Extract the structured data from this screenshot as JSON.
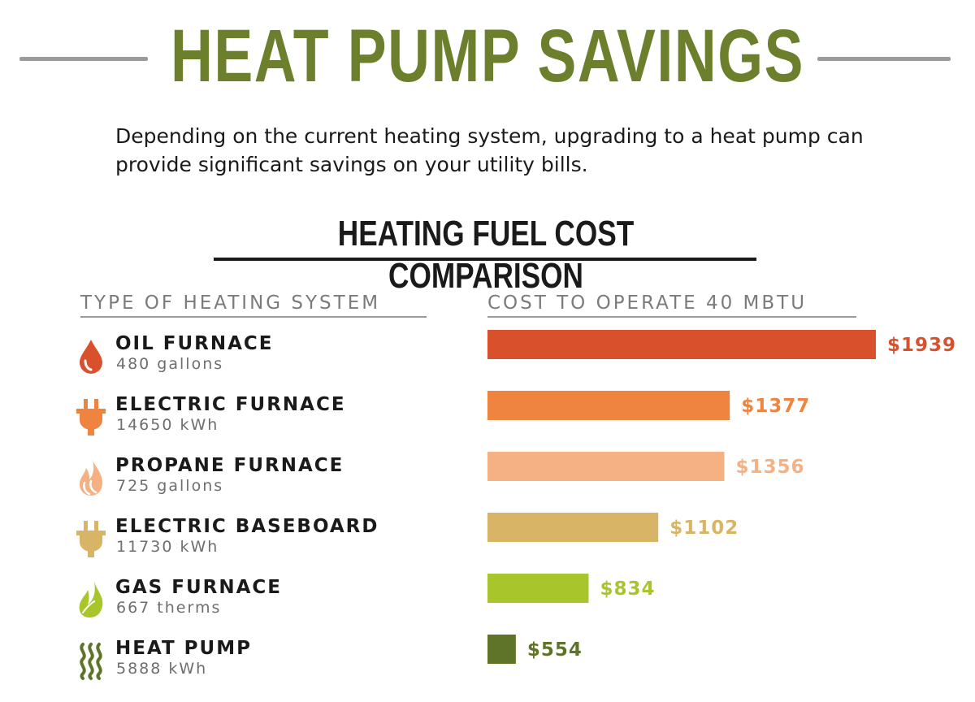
{
  "title": "HEAT PUMP SAVINGS",
  "intro": "Depending on the current heating system, upgrading to a heat pump can provide significant savings on your utility bills.",
  "chart_title": "HEATING FUEL COST COMPARISON",
  "col_left_header": "TYPE OF HEATING SYSTEM",
  "col_right_header": "COST TO OPERATE 40 MBTU",
  "colors": {
    "title": "#6b7f2c",
    "oil": "#d9512c",
    "electric_furnace": "#ef8340",
    "propane": "#f5b183",
    "baseboard": "#d8b467",
    "gas": "#a8c52c",
    "heat_pump": "#5f7428"
  },
  "systems": [
    {
      "name": "OIL FURNACE",
      "amount": "480 gallons",
      "icon": "oil-drop-icon",
      "color": "#d9512c",
      "label": "$1939"
    },
    {
      "name": "ELECTRIC FURNACE",
      "amount": "14650 kWh",
      "icon": "electric-plug-icon",
      "color": "#ef8340",
      "label": "$1377"
    },
    {
      "name": "PROPANE FURNACE",
      "amount": "725 gallons",
      "icon": "flame-icon",
      "color": "#f5b183",
      "label": "$1356"
    },
    {
      "name": "ELECTRIC BASEBOARD",
      "amount": "11730 kWh",
      "icon": "electric-plug-icon",
      "color": "#d8b467",
      "label": "$1102"
    },
    {
      "name": "GAS FURNACE",
      "amount": "667 therms",
      "icon": "leaf-flame-icon",
      "color": "#a8c52c",
      "label": "$834"
    },
    {
      "name": "HEAT PUMP",
      "amount": "5888 kWh",
      "icon": "heat-waves-icon",
      "color": "#5f7428",
      "label": "$554"
    }
  ],
  "chart_data": {
    "type": "bar",
    "orientation": "horizontal",
    "categories": [
      "OIL FURNACE",
      "ELECTRIC FURNACE",
      "PROPANE FURNACE",
      "ELECTRIC BASEBOARD",
      "GAS FURNACE",
      "HEAT PUMP"
    ],
    "values": [
      1939,
      1377,
      1356,
      1102,
      834,
      554
    ],
    "value_labels": [
      "$1939",
      "$1377",
      "$1356",
      "$1102",
      "$834",
      "$554"
    ],
    "colors": [
      "#d9512c",
      "#ef8340",
      "#f5b183",
      "#d8b467",
      "#a8c52c",
      "#5f7428"
    ],
    "title": "HEATING FUEL COST COMPARISON",
    "xlabel": "COST TO OPERATE 40 MBTU",
    "ylabel": "TYPE OF HEATING SYSTEM",
    "xlim": [
      445,
      1939
    ],
    "grid": false,
    "legend": "none"
  }
}
